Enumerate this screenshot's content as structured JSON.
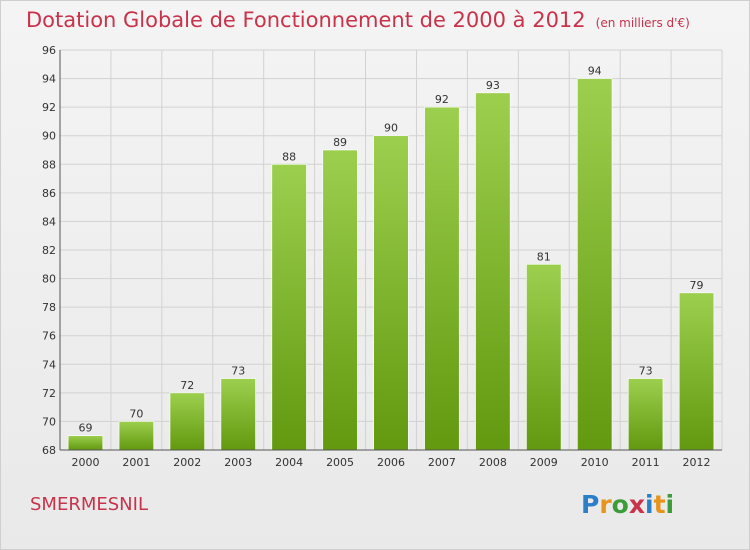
{
  "chart_data": {
    "type": "bar",
    "title": "Dotation Globale de Fonctionnement de 2000 à 2012",
    "subtitle": "(en milliers d'€)",
    "categories": [
      "2000",
      "2001",
      "2002",
      "2003",
      "2004",
      "2005",
      "2006",
      "2007",
      "2008",
      "2009",
      "2010",
      "2011",
      "2012"
    ],
    "values": [
      69,
      70,
      72,
      73,
      88,
      89,
      90,
      92,
      93,
      81,
      94,
      73,
      79
    ],
    "ylim": [
      68,
      96
    ],
    "yticks": [
      68,
      70,
      72,
      74,
      76,
      78,
      80,
      82,
      84,
      86,
      88,
      90,
      92,
      94,
      96
    ],
    "grid": true,
    "bar_color": "#7cb52e"
  },
  "footer": {
    "commune": "SMERMESNIL"
  },
  "logo": {
    "p": "P",
    "r": "r",
    "o": "o",
    "x": "x",
    "i1": "i",
    "t": "t",
    "i2": "i"
  }
}
